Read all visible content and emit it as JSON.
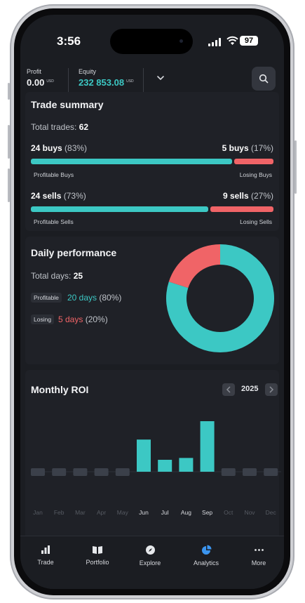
{
  "status_bar": {
    "time": "3:56",
    "battery": "97"
  },
  "header": {
    "profit": {
      "label": "Profit",
      "value": "0.00",
      "currency": "USD"
    },
    "equity": {
      "label": "Equity",
      "value": "232 853.08",
      "currency": "USD"
    }
  },
  "trade_summary": {
    "title": "Trade summary",
    "total_label": "Total trades:",
    "total_value": "62",
    "buys": {
      "profitable": "24 buys",
      "profitable_pct": "(83%)",
      "losing": "5 buys",
      "losing_pct": "(17%)",
      "profitable_label": "Profitable Buys",
      "losing_label": "Losing Buys",
      "profitable_fraction": 0.83
    },
    "sells": {
      "profitable": "24 sells",
      "profitable_pct": "(73%)",
      "losing": "9 sells",
      "losing_pct": "(27%)",
      "profitable_label": "Profitable Sells",
      "losing_label": "Losing Sells",
      "profitable_fraction": 0.73
    }
  },
  "daily_performance": {
    "title": "Daily performance",
    "total_label": "Total days:",
    "total_value": "25",
    "profitable_label": "Profitable",
    "profitable_value": "20 days",
    "profitable_pct": "(80%)",
    "losing_label": "Losing",
    "losing_value": "5 days",
    "losing_pct": "(20%)"
  },
  "monthly_roi": {
    "title": "Monthly ROI",
    "year": "2025"
  },
  "chart_data": [
    {
      "type": "pie",
      "categories": [
        "Profitable",
        "Losing"
      ],
      "values": [
        80,
        20
      ]
    },
    {
      "type": "bar",
      "categories": [
        "Jan",
        "Feb",
        "Mar",
        "Apr",
        "May",
        "Jun",
        "Jul",
        "Aug",
        "Sep",
        "Oct",
        "Nov",
        "Dec"
      ],
      "values": [
        0,
        0,
        0,
        0,
        0,
        3.5,
        1.3,
        1.5,
        5.5,
        0,
        0,
        0
      ],
      "active": [
        false,
        false,
        false,
        false,
        false,
        true,
        true,
        true,
        true,
        false,
        false,
        false
      ]
    }
  ],
  "tabs": [
    {
      "label": "Trade",
      "icon": "bar-chart-icon"
    },
    {
      "label": "Portfolio",
      "icon": "book-icon"
    },
    {
      "label": "Explore",
      "icon": "compass-icon"
    },
    {
      "label": "Analytics",
      "icon": "pie-chart-icon"
    },
    {
      "label": "More",
      "icon": "more-icon"
    }
  ],
  "colors": {
    "teal": "#3cc8c4",
    "red": "#f06467",
    "background": "#1b1d22",
    "card": "#1f2127"
  }
}
